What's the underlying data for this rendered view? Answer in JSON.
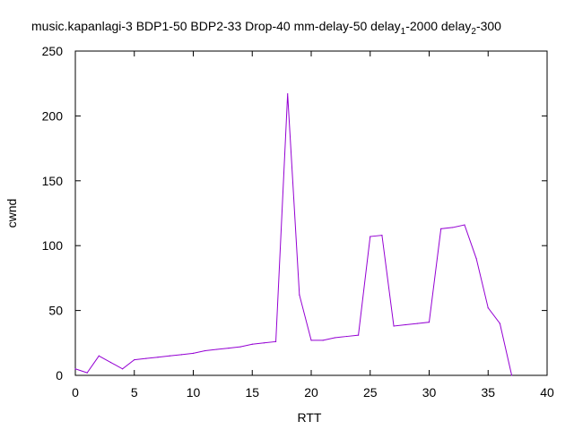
{
  "colors": {
    "series": "#9400d3",
    "axis": "#000000",
    "background": "#ffffff"
  },
  "chart_data": {
    "type": "line",
    "title": {
      "segments": [
        {
          "text": "music.kapanlagi-3 BDP1-50 BDP2-33 Drop-40 mm-delay-50 delay",
          "sub": false
        },
        {
          "text": "1",
          "sub": true
        },
        {
          "text": "-2000 delay",
          "sub": false
        },
        {
          "text": "2",
          "sub": true
        },
        {
          "text": "-300",
          "sub": false
        }
      ]
    },
    "xlabel": "RTT",
    "ylabel": "cwnd",
    "xlim": [
      0,
      40
    ],
    "ylim": [
      0,
      250
    ],
    "xticks": [
      "0",
      "5",
      "10",
      "15",
      "20",
      "25",
      "30",
      "35",
      "40"
    ],
    "yticks": [
      "0",
      "50",
      "100",
      "150",
      "200",
      "250"
    ],
    "grid": false,
    "legend": "none",
    "series": [
      {
        "x": [
          0,
          1,
          2,
          3,
          4,
          5,
          6,
          7,
          8,
          9,
          10,
          11,
          12,
          13,
          14,
          15,
          16,
          17,
          18,
          19,
          20,
          21,
          22,
          23,
          24,
          25,
          26,
          27,
          28,
          29,
          30,
          31,
          32,
          33,
          34,
          35,
          36,
          37
        ],
        "y": [
          5,
          2,
          15,
          10,
          5,
          12,
          13,
          14,
          15,
          16,
          17,
          19,
          20,
          21,
          22,
          24,
          25,
          26,
          217,
          62,
          27,
          27,
          29,
          30,
          31,
          107,
          108,
          38,
          39,
          40,
          41,
          113,
          114,
          116,
          90,
          52,
          40,
          0
        ]
      }
    ]
  }
}
